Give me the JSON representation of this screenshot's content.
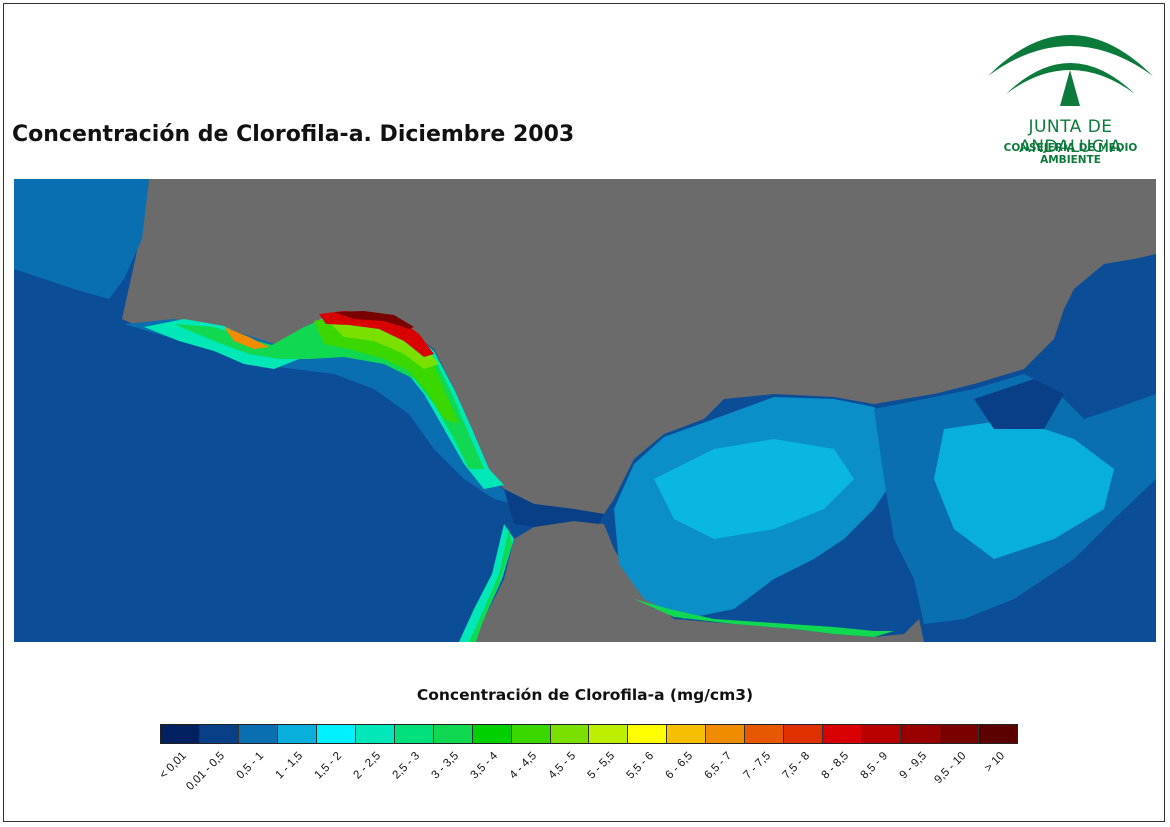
{
  "title": "Concentración de Clorofila-a. Diciembre 2003",
  "logo": {
    "name": "JUNTA DE ANDALUCIA",
    "subtitle": "CONSEJERÍA DE MEDIO AMBIENTE",
    "color": "#0c7a3a"
  },
  "map": {
    "land_color": "#6b6b6b",
    "region": "Estrecho de Gibraltar"
  },
  "legend": {
    "title": "Concentración de Clorofila-a (mg/cm3)",
    "classes": [
      {
        "label": "< 0,01",
        "color": "#002060"
      },
      {
        "label": "0,01 - 0,5",
        "color": "#083f86"
      },
      {
        "label": "0,5 - 1",
        "color": "#0a6fb0"
      },
      {
        "label": "1 - 1,5",
        "color": "#09afdc"
      },
      {
        "label": "1,5 - 2",
        "color": "#00f0ff"
      },
      {
        "label": "2 - 2,5",
        "color": "#00e8b8"
      },
      {
        "label": "2,5 - 3",
        "color": "#00e07a"
      },
      {
        "label": "3 - 3,5",
        "color": "#10d850"
      },
      {
        "label": "3,5 - 4",
        "color": "#00d000"
      },
      {
        "label": "4 - 4,5",
        "color": "#3ad800"
      },
      {
        "label": "4,5 - 5",
        "color": "#7ae000"
      },
      {
        "label": "5 - 5,5",
        "color": "#bcf000"
      },
      {
        "label": "5,5 - 6",
        "color": "#ffff00"
      },
      {
        "label": "6 - 6,5",
        "color": "#f6c000"
      },
      {
        "label": "6,5 - 7",
        "color": "#f08c00"
      },
      {
        "label": "7 - 7,5",
        "color": "#e85800"
      },
      {
        "label": "7,5 - 8",
        "color": "#e03000"
      },
      {
        "label": "8 - 8,5",
        "color": "#d80000"
      },
      {
        "label": "8,5 - 9",
        "color": "#b80000"
      },
      {
        "label": "9 - 9,5",
        "color": "#980000"
      },
      {
        "label": "9,5 - 10",
        "color": "#7a0000"
      },
      {
        "label": "> 10",
        "color": "#5c0000"
      }
    ]
  }
}
